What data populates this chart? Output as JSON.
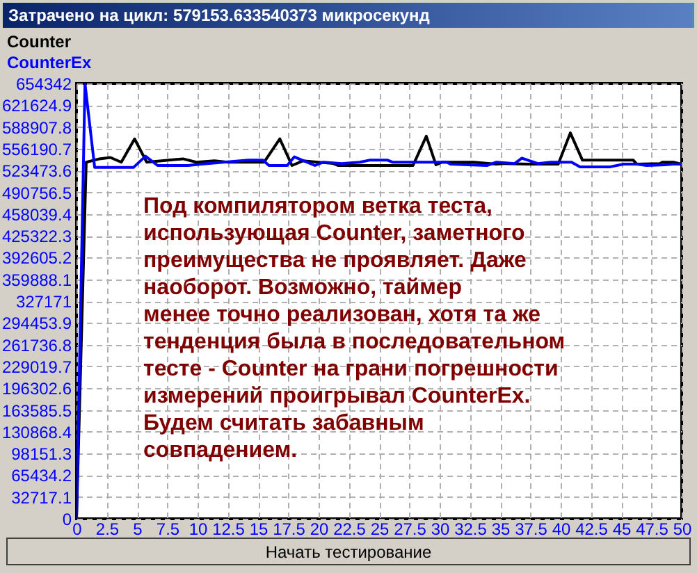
{
  "chart_data": {
    "type": "line",
    "title": "Затрачено на цикл: 579153.633540373 микросекунд",
    "series": [
      {
        "name": "Counter",
        "color": "#000000",
        "x": [
          0,
          0.8,
          1.9,
          2.8,
          3.7,
          4.8,
          5.8,
          8.8,
          9.9,
          11.4,
          12.5,
          15.5,
          16.8,
          17.8,
          18.7,
          21.2,
          21.6,
          27.8,
          28.9,
          29.7,
          30.2,
          32.8,
          34.7,
          35.4,
          37.3,
          39.8,
          40.8,
          41.8,
          46.0,
          46.3,
          48.2,
          48.4,
          49.3,
          50
        ],
        "values": [
          0,
          536000,
          541000,
          543000,
          536000,
          571000,
          536000,
          541000,
          536000,
          538000,
          536000,
          536000,
          571000,
          531000,
          538000,
          534000,
          531000,
          531000,
          575000,
          532000,
          536000,
          536000,
          533000,
          534000,
          533000,
          533000,
          580000,
          539000,
          539000,
          533000,
          534000,
          536000,
          536000,
          533000
        ]
      },
      {
        "name": "CounterEx",
        "color": "#0000ff",
        "x": [
          0,
          0.7,
          1.5,
          4.7,
          5.7,
          6.7,
          9.2,
          10.3,
          14.2,
          15.4,
          15.9,
          17.4,
          18.0,
          19.7,
          20.4,
          21.9,
          23.4,
          24.2,
          25.7,
          26.1,
          30.6,
          30.9,
          33.9,
          34.7,
          36.2,
          36.8,
          37.3,
          38.1,
          39.2,
          40.9,
          41.6,
          44.1,
          45.2,
          46.3,
          47.1,
          48.6,
          49.3,
          50
        ],
        "values": [
          0,
          654000,
          528000,
          528000,
          545000,
          531000,
          531000,
          533000,
          539000,
          539000,
          531000,
          531000,
          544000,
          531000,
          536000,
          534000,
          536000,
          539000,
          539000,
          536000,
          536000,
          533000,
          531000,
          536000,
          534000,
          542000,
          539000,
          534000,
          536000,
          536000,
          529000,
          529000,
          533000,
          533000,
          531000,
          532000,
          533000,
          533000
        ]
      }
    ],
    "xlim": [
      0,
      50
    ],
    "xticks": [
      0,
      2.5,
      5,
      7.5,
      10,
      12.5,
      15,
      17.5,
      20,
      22.5,
      25,
      27.5,
      30,
      32.5,
      35,
      37.5,
      40,
      42.5,
      45,
      47.5,
      50
    ],
    "ylim": [
      0,
      654342
    ],
    "yticks": [
      0,
      32717.1,
      65434.2,
      98151.3,
      130868.4,
      163585.5,
      196302.6,
      229019.7,
      261736.8,
      294453.9,
      327171,
      359888.1,
      392605.2,
      425322.3,
      458039.4,
      490756.5,
      523473.6,
      556190.7,
      588907.8,
      621624.9,
      654342
    ],
    "grid": true,
    "legend": "top left",
    "annotations": [
      "Под компилятором ветка теста,\nиспользующая Counter, заметного\nпреимущества не проявляет. Даже\nнаоборот. Возможно, таймер\nменее точно реализован, хотя та же\nтенденция была в последовательном\nтесте - Counter на грани погрешности\nизмерений проигрывал CounterEx.\nБудем считать забавным\nсовпадением.",
      "Начать тестирование"
    ]
  }
}
